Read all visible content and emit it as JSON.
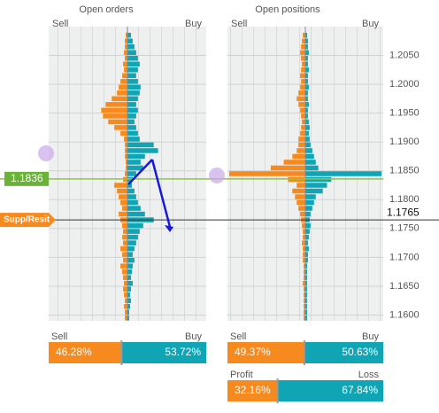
{
  "chart_data": [
    {
      "type": "bar",
      "title": "Open orders",
      "left_label": "Sell",
      "right_label": "Buy",
      "y": [
        1.2085,
        1.2075,
        1.2065,
        1.2055,
        1.2045,
        1.2035,
        1.2025,
        1.2015,
        1.2005,
        1.1995,
        1.1985,
        1.1975,
        1.1965,
        1.1955,
        1.1945,
        1.1935,
        1.1925,
        1.1915,
        1.1905,
        1.1895,
        1.1885,
        1.1875,
        1.1865,
        1.1855,
        1.1845,
        1.1835,
        1.1825,
        1.1815,
        1.1805,
        1.1795,
        1.1785,
        1.1775,
        1.1765,
        1.1755,
        1.1745,
        1.1735,
        1.1725,
        1.1715,
        1.1705,
        1.1695,
        1.1685,
        1.1675,
        1.1665,
        1.1655,
        1.1645,
        1.1635,
        1.1625,
        1.1615,
        1.1605,
        1.1595
      ],
      "series": [
        {
          "color": "#f68a1e",
          "values": [
            -2,
            -3,
            -3,
            -4,
            -3,
            -5,
            -4,
            -6,
            -8,
            -10,
            -12,
            -18,
            -25,
            -30,
            -28,
            -22,
            -15,
            -8,
            -4,
            -3,
            -3,
            -3,
            -2,
            -2,
            -3,
            -5,
            -15,
            -12,
            -10,
            -8,
            -6,
            -10,
            -8,
            -6,
            -5,
            -6,
            -5,
            -8,
            -6,
            -5,
            -8,
            -6,
            -5,
            -4,
            -5,
            -4,
            -3,
            -4,
            -3,
            -3
          ]
        },
        {
          "color": "#0fa5b5",
          "values": [
            4,
            6,
            8,
            10,
            12,
            14,
            12,
            10,
            12,
            15,
            14,
            12,
            10,
            12,
            10,
            8,
            10,
            12,
            14,
            30,
            35,
            20,
            15,
            18,
            10,
            6,
            5,
            8,
            10,
            12,
            15,
            20,
            30,
            18,
            14,
            12,
            10,
            8,
            6,
            8,
            6,
            5,
            4,
            6,
            4,
            3,
            4,
            3,
            2,
            2
          ]
        }
      ],
      "xlim": [
        -90,
        90
      ],
      "ylim": [
        1.159,
        1.21
      ],
      "current_price": 1.1836,
      "level_label": "Supp/Resit",
      "level": 1.1765
    },
    {
      "type": "bar",
      "title": "Open positions",
      "left_label": "Sell",
      "right_label": "Buy",
      "y": [
        1.2085,
        1.2075,
        1.2065,
        1.2055,
        1.2045,
        1.2035,
        1.2025,
        1.2015,
        1.2005,
        1.1995,
        1.1985,
        1.1975,
        1.1965,
        1.1955,
        1.1945,
        1.1935,
        1.1925,
        1.1915,
        1.1905,
        1.1895,
        1.1885,
        1.1875,
        1.1865,
        1.1855,
        1.1845,
        1.1835,
        1.1825,
        1.1815,
        1.1805,
        1.1795,
        1.1785,
        1.1775,
        1.1765,
        1.1755,
        1.1745,
        1.1735,
        1.1725,
        1.1715,
        1.1705,
        1.1695,
        1.1685,
        1.1675,
        1.1665,
        1.1655,
        1.1645,
        1.1635,
        1.1625,
        1.1615,
        1.1605,
        1.1595
      ],
      "series": [
        {
          "color": "#f68a1e",
          "values": [
            -3,
            -4,
            -5,
            -6,
            -5,
            -4,
            -5,
            -6,
            -5,
            -6,
            -8,
            -10,
            -8,
            -6,
            -5,
            -4,
            -5,
            -6,
            -8,
            -8,
            -10,
            -15,
            -25,
            -40,
            -88,
            -20,
            -10,
            -15,
            -12,
            -10,
            -8,
            -6,
            -5,
            -4,
            -3,
            -3,
            -4,
            -3,
            -3,
            -3,
            -2,
            -2,
            -2,
            -3,
            -2,
            -2,
            -2,
            -2,
            -2,
            -2
          ]
        },
        {
          "color": "#0fa5b5",
          "values": [
            2,
            3,
            3,
            4,
            3,
            3,
            4,
            3,
            3,
            4,
            3,
            3,
            4,
            3,
            3,
            4,
            5,
            4,
            5,
            6,
            8,
            10,
            12,
            15,
            88,
            30,
            25,
            20,
            12,
            10,
            8,
            6,
            5,
            6,
            5,
            4,
            3,
            4,
            3,
            3,
            2,
            2,
            2,
            2,
            2,
            2,
            2,
            2,
            2,
            2
          ]
        }
      ],
      "xlim": [
        -90,
        90
      ],
      "ylim": [
        1.159,
        1.21
      ],
      "yticks": [
        {
          "value": 1.205,
          "label": "1.2050"
        },
        {
          "value": 1.2,
          "label": "1.2000"
        },
        {
          "value": 1.195,
          "label": "1.1950"
        },
        {
          "value": 1.19,
          "label": "1.1900"
        },
        {
          "value": 1.185,
          "label": "1.1850"
        },
        {
          "value": 1.18,
          "label": "1.1800"
        },
        {
          "value": 1.175,
          "label": "1.1750"
        },
        {
          "value": 1.17,
          "label": "1.1700"
        },
        {
          "value": 1.165,
          "label": "1.1650"
        },
        {
          "value": 1.16,
          "label": "1.1600"
        }
      ]
    }
  ],
  "summary": [
    {
      "labels": [
        "Sell",
        "Buy"
      ],
      "values": [
        46.28,
        53.72
      ],
      "value_labels": [
        "46.28%",
        "53.72%"
      ]
    },
    {
      "labels": [
        "Sell",
        "Buy"
      ],
      "values": [
        49.37,
        50.63
      ],
      "value_labels": [
        "49.37%",
        "50.63%"
      ]
    },
    {
      "labels": [
        "Profit",
        "Loss"
      ],
      "values": [
        32.16,
        67.84
      ],
      "value_labels": [
        "32.16%",
        "67.84%"
      ]
    }
  ]
}
